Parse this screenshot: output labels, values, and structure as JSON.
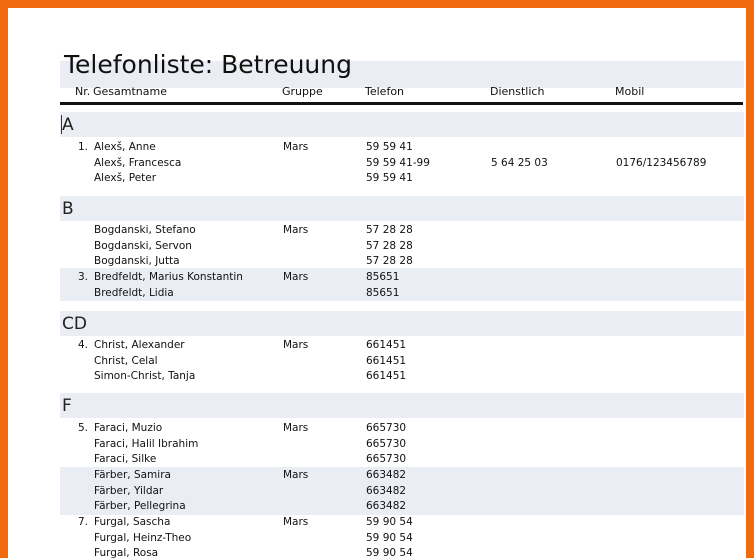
{
  "title": "Telefonliste: Betreuung",
  "headers": {
    "nr": "Nr.",
    "name": "Gesamtname",
    "gruppe": "Gruppe",
    "telefon": "Telefon",
    "dienstlich": "Dienstlich",
    "mobil": "Mobil"
  },
  "sections": [
    "A",
    "B",
    "CD",
    "F"
  ],
  "rows": [
    {
      "nr": "1.",
      "name": "Alexš, Anne",
      "gruppe": "Mars",
      "telefon": "59 59 41",
      "dienstlich": "",
      "mobil": ""
    },
    {
      "nr": "",
      "name": "Alexš, Francesca",
      "gruppe": "",
      "telefon": "59 59 41-99",
      "dienstlich": "5 64 25 03",
      "mobil": "0176/123456789"
    },
    {
      "nr": "",
      "name": "Alexš, Peter",
      "gruppe": "",
      "telefon": "59 59 41",
      "dienstlich": "",
      "mobil": ""
    },
    {
      "nr": "",
      "name": "Bogdanski, Stefano",
      "gruppe": "Mars",
      "telefon": "57 28 28",
      "dienstlich": "",
      "mobil": ""
    },
    {
      "nr": "",
      "name": "Bogdanski, Servon",
      "gruppe": "",
      "telefon": "57 28 28",
      "dienstlich": "",
      "mobil": ""
    },
    {
      "nr": "",
      "name": "Bogdanski, Jutta",
      "gruppe": "",
      "telefon": "57 28 28",
      "dienstlich": "",
      "mobil": ""
    },
    {
      "nr": "3.",
      "name": "Bredfeldt, Marius Konstantin",
      "gruppe": "Mars",
      "telefon": "85651",
      "dienstlich": "",
      "mobil": ""
    },
    {
      "nr": "",
      "name": "Bredfeldt, Lidia",
      "gruppe": "",
      "telefon": "85651",
      "dienstlich": "",
      "mobil": ""
    },
    {
      "nr": "4.",
      "name": "Christ, Alexander",
      "gruppe": "Mars",
      "telefon": "661451",
      "dienstlich": "",
      "mobil": ""
    },
    {
      "nr": "",
      "name": "Christ, Celal",
      "gruppe": "",
      "telefon": "661451",
      "dienstlich": "",
      "mobil": ""
    },
    {
      "nr": "",
      "name": "Simon-Christ, Tanja",
      "gruppe": "",
      "telefon": "661451",
      "dienstlich": "",
      "mobil": ""
    },
    {
      "nr": "5.",
      "name": "Faraci, Muzio",
      "gruppe": "Mars",
      "telefon": "665730",
      "dienstlich": "",
      "mobil": ""
    },
    {
      "nr": "",
      "name": "Faraci, Halil Ibrahim",
      "gruppe": "",
      "telefon": "665730",
      "dienstlich": "",
      "mobil": ""
    },
    {
      "nr": "",
      "name": "Faraci, Silke",
      "gruppe": "",
      "telefon": "665730",
      "dienstlich": "",
      "mobil": ""
    },
    {
      "nr": "",
      "name": "Färber, Samira",
      "gruppe": "Mars",
      "telefon": "663482",
      "dienstlich": "",
      "mobil": ""
    },
    {
      "nr": "",
      "name": "Färber, Yildar",
      "gruppe": "",
      "telefon": "663482",
      "dienstlich": "",
      "mobil": ""
    },
    {
      "nr": "",
      "name": "Färber, Pellegrina",
      "gruppe": "",
      "telefon": "663482",
      "dienstlich": "",
      "mobil": ""
    },
    {
      "nr": "7.",
      "name": "Furgal, Sascha",
      "gruppe": "Mars",
      "telefon": "59 90 54",
      "dienstlich": "",
      "mobil": ""
    },
    {
      "nr": "",
      "name": "Furgal, Heinz-Theo",
      "gruppe": "",
      "telefon": "59 90 54",
      "dienstlich": "",
      "mobil": ""
    },
    {
      "nr": "",
      "name": "Furgal, Rosa",
      "gruppe": "",
      "telefon": "59 90 54",
      "dienstlich": "",
      "mobil": ""
    }
  ]
}
